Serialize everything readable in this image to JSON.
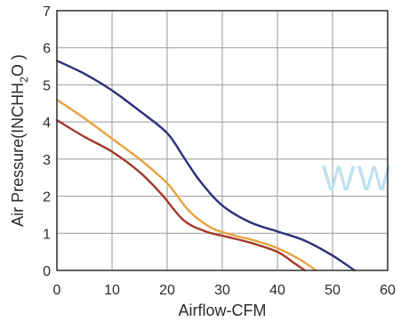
{
  "chart_data": {
    "type": "line",
    "title": "",
    "xlabel": "Airflow-CFM",
    "ylabel_main": "Air Pressure(INCHH",
    "ylabel_sub": "2",
    "ylabel_tail": "O )",
    "xlim": [
      0,
      60
    ],
    "ylim": [
      0,
      7
    ],
    "xticks": [
      "0",
      "10",
      "20",
      "30",
      "40",
      "50",
      "60"
    ],
    "yticks": [
      "0",
      "1",
      "2",
      "3",
      "4",
      "5",
      "6",
      "7"
    ],
    "grid": true,
    "legend": "none",
    "watermark": "WW",
    "series": [
      {
        "color": "#2e2e7a",
        "x": [
          0,
          5,
          10,
          15,
          20,
          23,
          26,
          30,
          35,
          40,
          45,
          50,
          54
        ],
        "y": [
          5.65,
          5.3,
          4.85,
          4.3,
          3.7,
          3.05,
          2.4,
          1.75,
          1.3,
          1.05,
          0.8,
          0.4,
          0.0
        ]
      },
      {
        "color": "#e8a23c",
        "x": [
          0,
          5,
          10,
          15,
          20,
          24,
          28,
          32,
          36,
          40,
          44,
          47
        ],
        "y": [
          4.6,
          4.1,
          3.55,
          3.0,
          2.35,
          1.6,
          1.15,
          0.95,
          0.8,
          0.6,
          0.3,
          0.0
        ]
      },
      {
        "color": "#a33a2a",
        "x": [
          0,
          5,
          10,
          15,
          19,
          23,
          27,
          31,
          35,
          40,
          43,
          45
        ],
        "y": [
          4.05,
          3.6,
          3.2,
          2.65,
          2.05,
          1.35,
          1.05,
          0.9,
          0.75,
          0.5,
          0.2,
          0.0
        ]
      }
    ]
  }
}
